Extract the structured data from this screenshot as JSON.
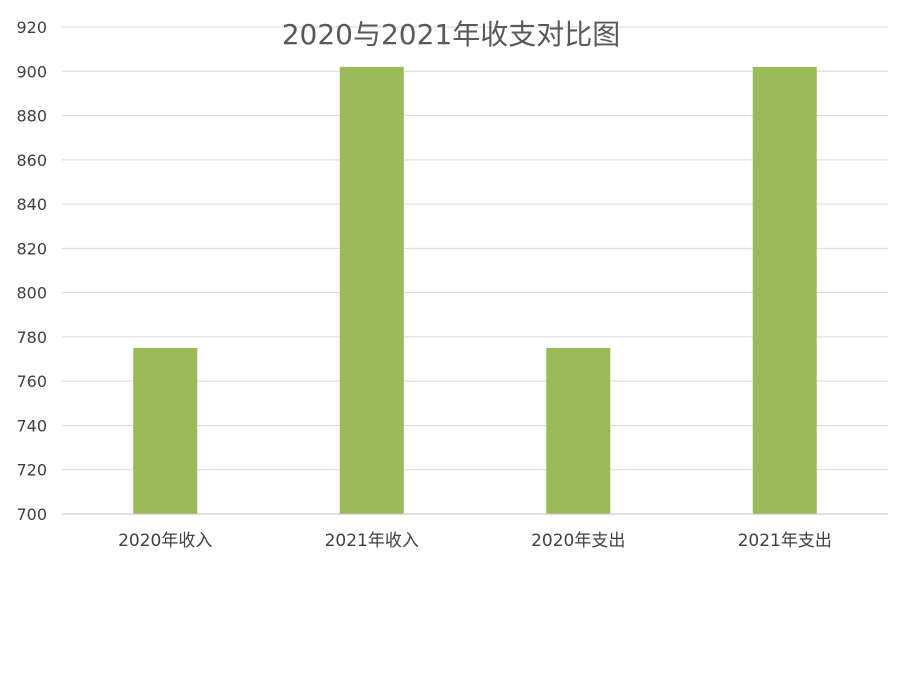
{
  "chart_data": {
    "type": "bar",
    "title": "2020与2021年收支对比图",
    "xlabel": "",
    "ylabel": "",
    "categories": [
      "2020年收入",
      "2021年收入",
      "2020年支出",
      "2021年支出"
    ],
    "values": [
      775,
      902,
      775,
      902
    ],
    "ylim": [
      700,
      920
    ],
    "yticks": [
      700,
      720,
      740,
      760,
      780,
      800,
      820,
      840,
      860,
      880,
      900,
      920
    ],
    "grid": true,
    "legend": "none",
    "colors": {
      "bar": "#9bbb59",
      "grid": "#d9d9d9",
      "text": "#404040",
      "title": "#595959"
    }
  }
}
